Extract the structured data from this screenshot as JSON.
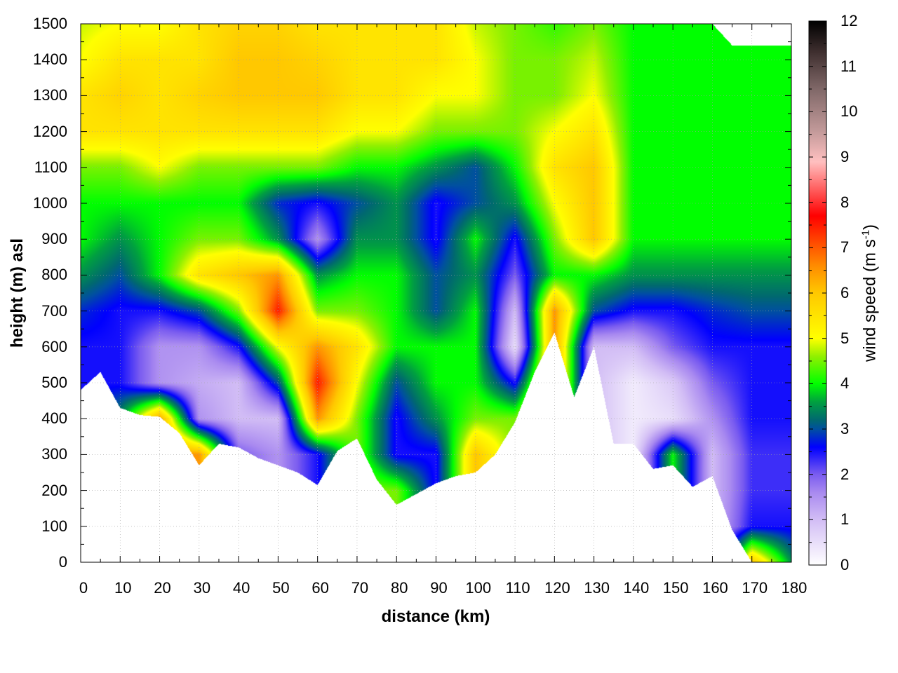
{
  "chart_data": {
    "type": "heatmap",
    "xlabel": "distance (km)",
    "ylabel": "height (m) asl",
    "colorbar_label": "wind speed (m s",
    "colorbar_label_sup": "-1",
    "colorbar_label_end": ")",
    "xlim": [
      0,
      180
    ],
    "ylim": [
      0,
      1500
    ],
    "clim": [
      0,
      12
    ],
    "grid": true,
    "x_ticks": [
      0,
      10,
      20,
      30,
      40,
      50,
      60,
      70,
      80,
      90,
      100,
      110,
      120,
      130,
      140,
      150,
      160,
      170,
      180
    ],
    "y_ticks": [
      0,
      100,
      200,
      300,
      400,
      500,
      600,
      700,
      800,
      900,
      1000,
      1100,
      1200,
      1300,
      1400,
      1500
    ],
    "colorbar_ticks": [
      0,
      1,
      2,
      3,
      4,
      5,
      6,
      7,
      8,
      9,
      10,
      11,
      12
    ],
    "colormap": [
      {
        "v": 0,
        "c": "#ffffff"
      },
      {
        "v": 1,
        "c": "#d2bdf5"
      },
      {
        "v": 1.6,
        "c": "#a98af0"
      },
      {
        "v": 2,
        "c": "#7a5cf0"
      },
      {
        "v": 2.6,
        "c": "#0000ff"
      },
      {
        "v": 3,
        "c": "#0050a0"
      },
      {
        "v": 3.2,
        "c": "#006870"
      },
      {
        "v": 3.6,
        "c": "#00a040"
      },
      {
        "v": 4,
        "c": "#00ff00"
      },
      {
        "v": 4.6,
        "c": "#90f000"
      },
      {
        "v": 5,
        "c": "#ffff00"
      },
      {
        "v": 6,
        "c": "#ffc800"
      },
      {
        "v": 6.6,
        "c": "#ff8c00"
      },
      {
        "v": 7.2,
        "c": "#ff4000"
      },
      {
        "v": 7.7,
        "c": "#ff0000"
      },
      {
        "v": 8.3,
        "c": "#ff6060"
      },
      {
        "v": 8.9,
        "c": "#ffc0c0"
      },
      {
        "v": 9.6,
        "c": "#c09898"
      },
      {
        "v": 10.5,
        "c": "#806868"
      },
      {
        "v": 11.3,
        "c": "#403030"
      },
      {
        "v": 12,
        "c": "#000000"
      }
    ],
    "grid_x_km": [
      0,
      10,
      20,
      30,
      40,
      50,
      60,
      70,
      80,
      90,
      100,
      110,
      120,
      130,
      140,
      150,
      160,
      170,
      180
    ],
    "grid_height_m": [
      0,
      100,
      200,
      300,
      400,
      500,
      600,
      700,
      800,
      900,
      1000,
      1100,
      1200,
      1300,
      1400,
      1500
    ],
    "wind_speed": [
      [
        null,
        null,
        null,
        null,
        null,
        2.5,
        2.5,
        2.8,
        3.5,
        4,
        4,
        4.5,
        5.5,
        5.5,
        5,
        4.8
      ],
      [
        null,
        null,
        null,
        null,
        3.5,
        2.5,
        2.5,
        2.5,
        3,
        3.5,
        4,
        4.5,
        5.5,
        5.8,
        5.5,
        5
      ],
      [
        null,
        null,
        null,
        null,
        6.5,
        1.5,
        1.5,
        2.5,
        4,
        4,
        4,
        5,
        5.5,
        5.5,
        5.5,
        5
      ],
      [
        null,
        null,
        null,
        6.5,
        1.5,
        1.2,
        1.5,
        3,
        5.5,
        4.5,
        4,
        4.5,
        5.5,
        5.8,
        5.5,
        5.5
      ],
      [
        null,
        null,
        null,
        2,
        1,
        1,
        2.5,
        4.5,
        6,
        4.5,
        4,
        4.5,
        5.5,
        6,
        6,
        5.8
      ],
      [
        null,
        null,
        null,
        1.5,
        1,
        3,
        5,
        7.5,
        6.5,
        3.5,
        2.8,
        4.5,
        5.5,
        6,
        6,
        5.8
      ],
      [
        null,
        null,
        null,
        2.5,
        6.5,
        7.5,
        6.5,
        4.5,
        3.5,
        1.5,
        2.5,
        4.5,
        5.5,
        6,
        5.8,
        5.5
      ],
      [
        null,
        null,
        null,
        null,
        4.5,
        5,
        5.5,
        4.5,
        4,
        3.5,
        3,
        4,
        5,
        5.5,
        5.5,
        5.5
      ],
      [
        null,
        null,
        4.5,
        2.5,
        2.5,
        3,
        4,
        4,
        4,
        3.5,
        3.5,
        4,
        5,
        5.5,
        5.5,
        5.5
      ],
      [
        null,
        null,
        null,
        2.5,
        3.5,
        4,
        4,
        3,
        3,
        2.5,
        2.5,
        3.5,
        4.5,
        5,
        5.5,
        5.5
      ],
      [
        null,
        null,
        null,
        6,
        4.5,
        4,
        4,
        4,
        3.5,
        4,
        3,
        3,
        4.5,
        5,
        5,
        4.8
      ],
      [
        null,
        null,
        null,
        null,
        4.5,
        2.5,
        0.5,
        1,
        2,
        2.5,
        3.5,
        4,
        4.5,
        4.5,
        4.5,
        4.5
      ],
      [
        null,
        null,
        null,
        null,
        null,
        null,
        null,
        6.5,
        4,
        4.5,
        5,
        5.5,
        5,
        4.5,
        4.5,
        4.2
      ],
      [
        null,
        null,
        null,
        null,
        null,
        null,
        1,
        3,
        4,
        6,
        6,
        6,
        5.5,
        5,
        4.8,
        4.5
      ],
      [
        null,
        null,
        null,
        null,
        0.3,
        0.3,
        1,
        2.5,
        3.5,
        4,
        4,
        4,
        4,
        4,
        4,
        4
      ],
      [
        null,
        null,
        null,
        4,
        0.5,
        0.8,
        2,
        2.5,
        3.5,
        4,
        4,
        4,
        4,
        4,
        4,
        4
      ],
      [
        null,
        null,
        null,
        1,
        1.5,
        2,
        2.5,
        2.8,
        3.5,
        4,
        4,
        4,
        4,
        4,
        4,
        4
      ],
      [
        6,
        2.5,
        2.3,
        2.3,
        2.5,
        2.5,
        2.5,
        3,
        3.5,
        4,
        4,
        4,
        4,
        4,
        4,
        null
      ],
      [
        3.5,
        2.5,
        2.3,
        2.3,
        2.5,
        2.5,
        2.5,
        3,
        3.5,
        4,
        4,
        4,
        4,
        4,
        4,
        null
      ]
    ],
    "terrain_x_km": [
      0,
      5,
      10,
      15,
      20,
      25,
      30,
      35,
      40,
      45,
      50,
      55,
      60,
      65,
      70,
      75,
      80,
      85,
      90,
      95,
      100,
      105,
      110,
      115,
      120,
      125,
      130,
      135,
      140,
      145,
      150,
      155,
      160,
      165,
      170,
      175,
      180
    ],
    "terrain_height_m": [
      480,
      530,
      430,
      410,
      405,
      360,
      270,
      330,
      320,
      290,
      270,
      250,
      215,
      310,
      345,
      230,
      160,
      190,
      220,
      240,
      250,
      300,
      390,
      530,
      640,
      460,
      600,
      330,
      330,
      260,
      270,
      210,
      240,
      90,
      0,
      0,
      0
    ],
    "data_top_m": [
      1500,
      1500,
      1500,
      1500,
      1500,
      1500,
      1500,
      1500,
      1500,
      1500,
      1500,
      1500,
      1500,
      1500,
      1500,
      1500,
      1500,
      1500,
      1500,
      1500,
      1500,
      1500,
      1500,
      1500,
      1500,
      1500,
      1500,
      1500,
      1500,
      1500,
      1500,
      1500,
      1500,
      1440,
      1440,
      1440,
      1440
    ]
  }
}
